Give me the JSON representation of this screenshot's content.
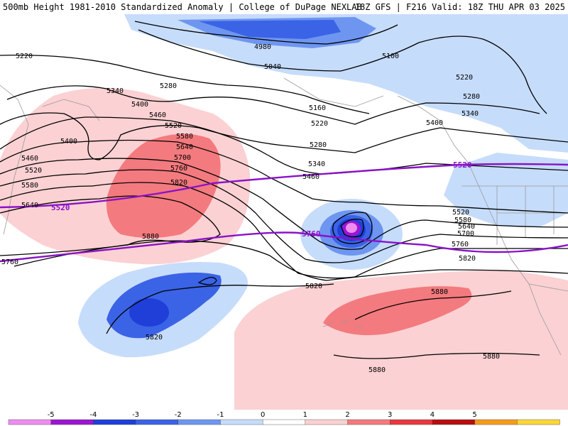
{
  "header": {
    "title": "500mb Height 1981-2010 Standardized Anomaly | College of DuPage NEXLAB",
    "run_info": "18Z GFS | F216 Valid: 18Z THU APR 03 2025"
  },
  "colors": {
    "neg4": "#1f3fd8",
    "neg3": "#3a63e6",
    "neg2": "#6e96f0",
    "neg1": "#c6dcfb",
    "pos1": "#fbd1d3",
    "pos2": "#f37a7e",
    "contour": "#000000",
    "highlight_contour": "#8a12c8",
    "border": "#9a9a9a"
  },
  "contour_labels": [
    "5220",
    "5340",
    "5280",
    "5400",
    "5460",
    "5520",
    "5580",
    "5640",
    "5700",
    "5760",
    "5820",
    "5880",
    "5400",
    "5460",
    "5520",
    "5580",
    "5640",
    "5760",
    "4980",
    "5040",
    "5100",
    "5160",
    "5220",
    "5280",
    "5340",
    "5400",
    "5460",
    "5220",
    "5280",
    "5340",
    "5520",
    "5580",
    "5640",
    "5700",
    "5760",
    "5820",
    "5820",
    "5820",
    "5880",
    "5880",
    "5880"
  ],
  "highlight_labels": [
    "5520",
    "5760",
    "5520",
    "5760"
  ],
  "colorbar": {
    "ticks": [
      "-5",
      "-4",
      "-3",
      "-2",
      "-1",
      "0",
      "1",
      "2",
      "3",
      "4",
      "5"
    ],
    "colors": [
      "#ee8cf0",
      "#9b16d0",
      "#1f3fd8",
      "#3a63e6",
      "#6e96f0",
      "#c6dcfb",
      "#ffffff",
      "#fbd1d3",
      "#f37a7e",
      "#e8383e",
      "#b80d10",
      "#f59b1c",
      "#fcd638"
    ]
  }
}
